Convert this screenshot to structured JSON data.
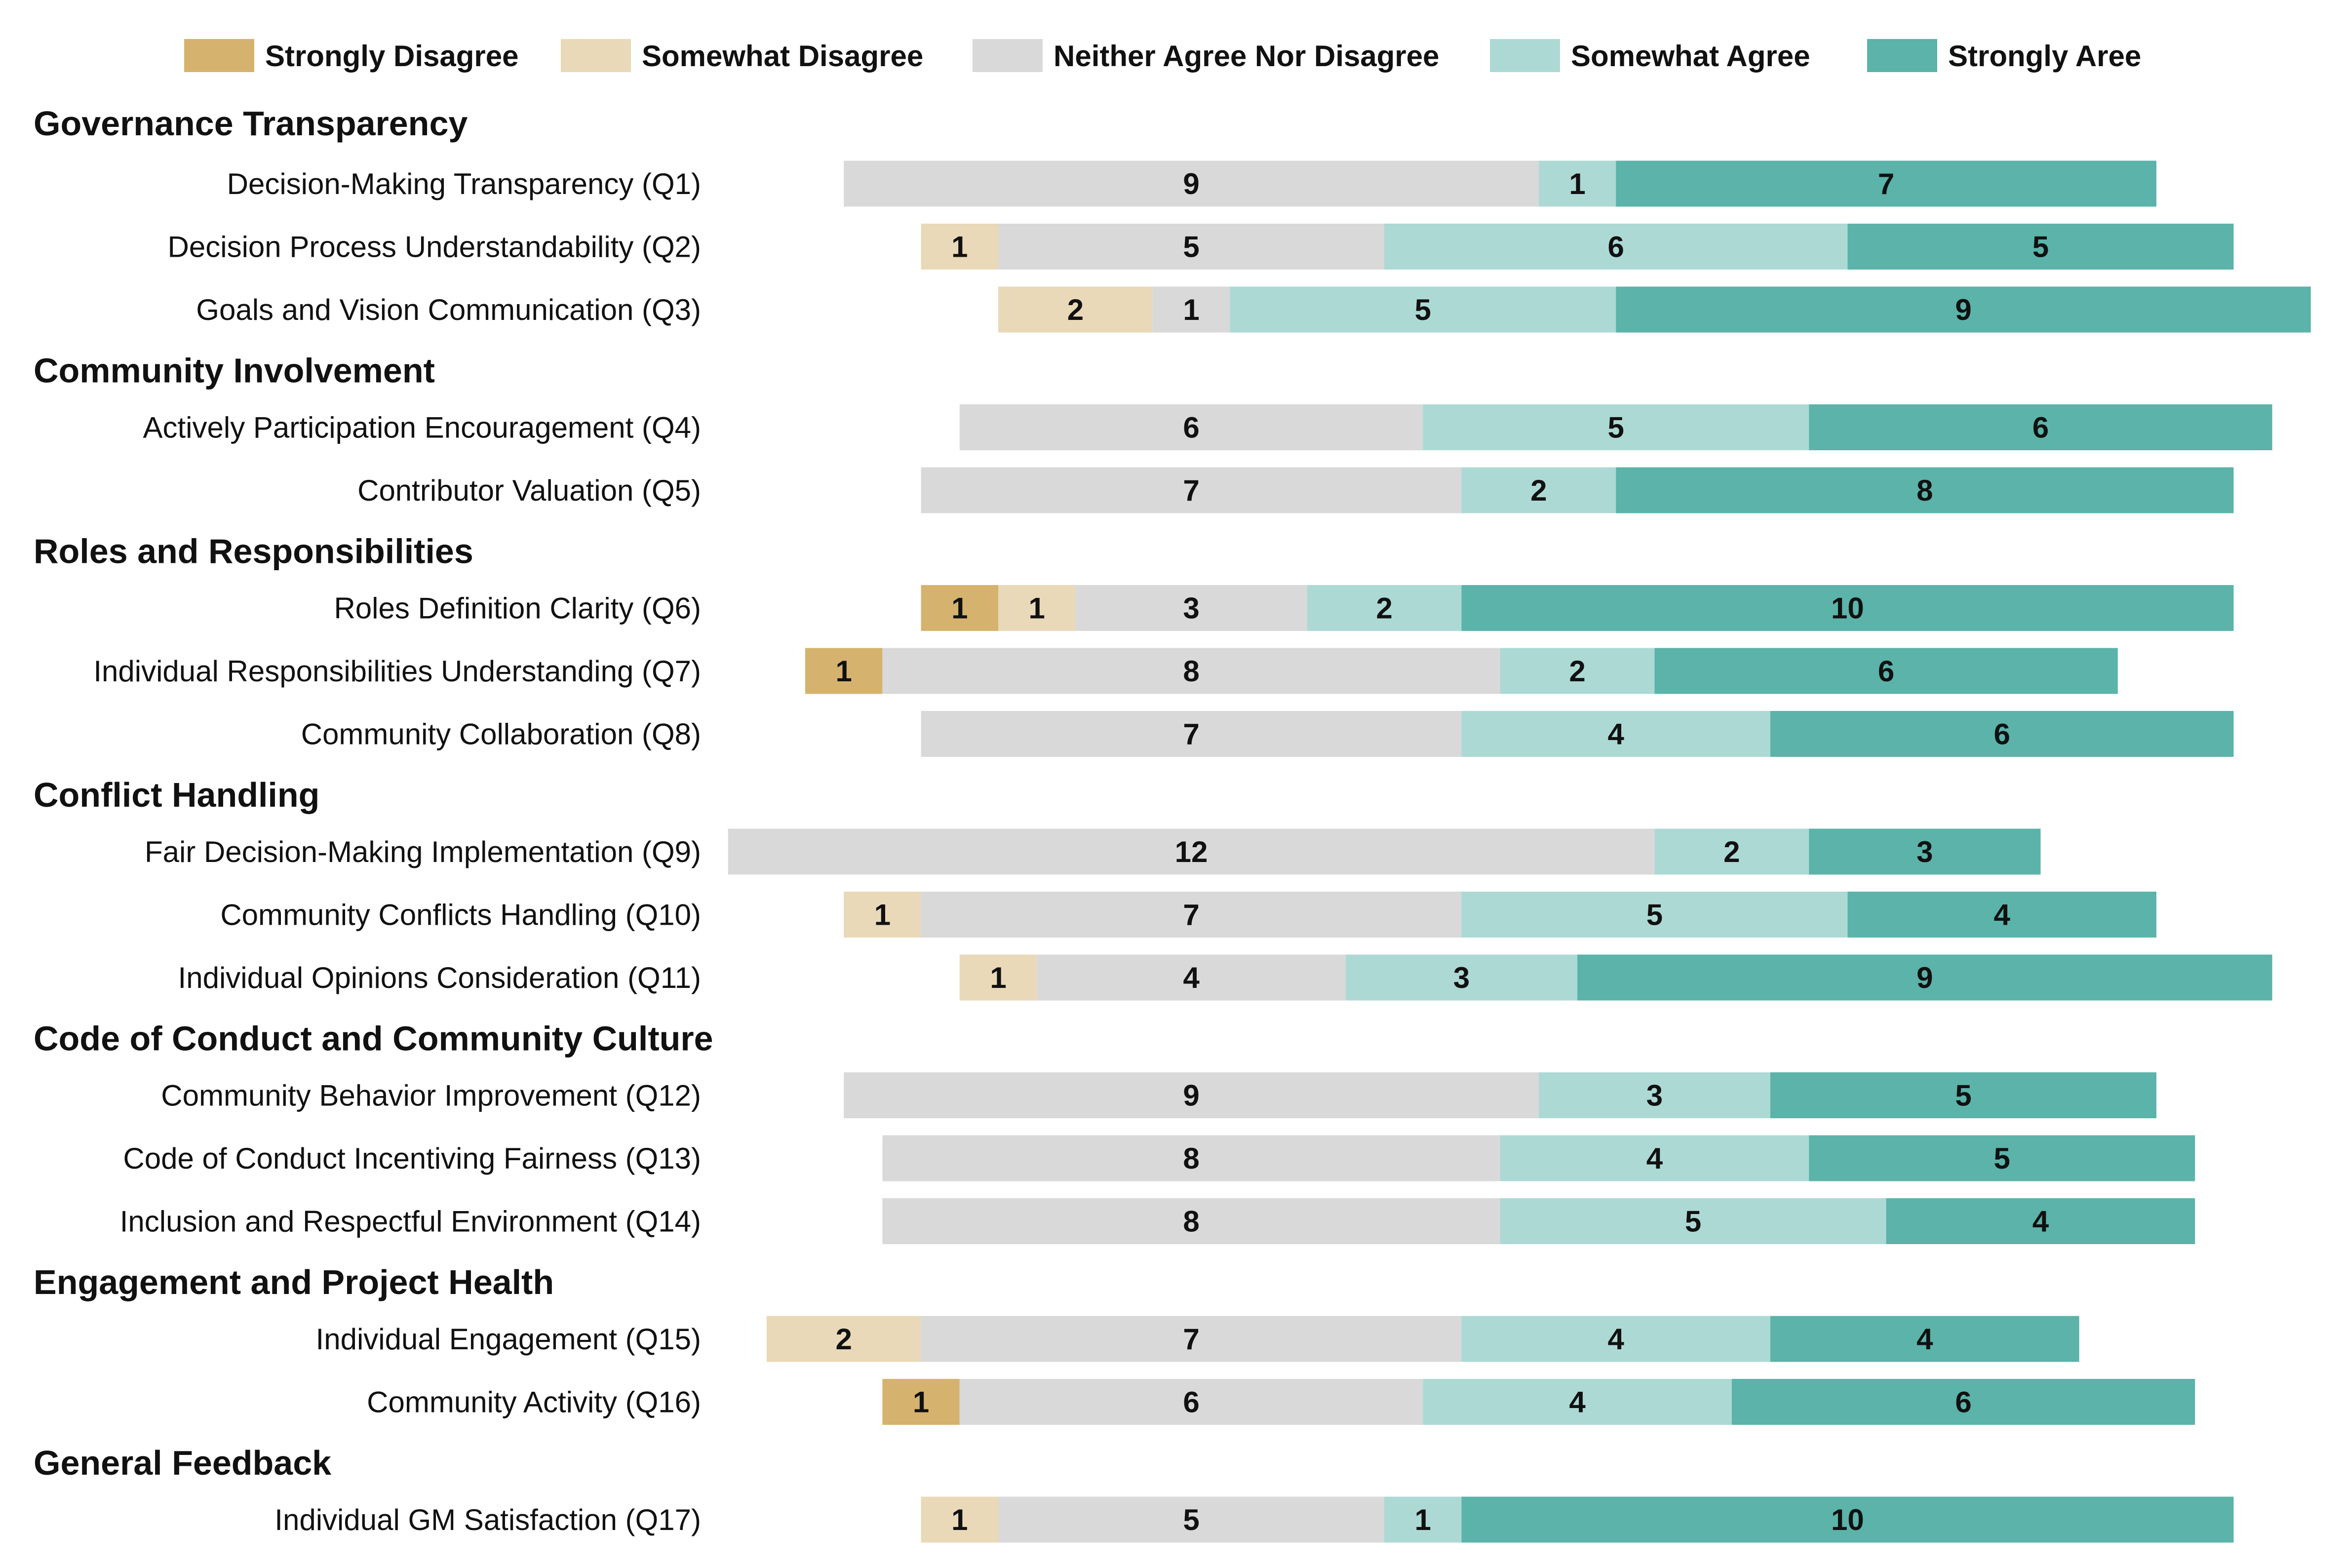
{
  "chart_data": {
    "type": "bar",
    "orientation": "horizontal",
    "stacked": true,
    "diverging": true,
    "title": "",
    "xlabel": "",
    "ylabel": "",
    "grid": false,
    "legend_position": "top",
    "legend": [
      {
        "name": "Strongly Disagree",
        "color": "#D5B36E"
      },
      {
        "name": "Somewhat Disagree",
        "color": "#E9D9B8"
      },
      {
        "name": "Neither Agree Nor Disagree",
        "color": "#D9D9D9"
      },
      {
        "name": "Somewhat Agree",
        "color": "#ADD9D5"
      },
      {
        "name": "Strongly Aree",
        "color": "#5BB3A9"
      }
    ],
    "sections": [
      {
        "title": "Governance Transparency",
        "items": [
          {
            "label": "Decision-Making Transparency (Q1)",
            "values": [
              0,
              0,
              9,
              1,
              7
            ]
          },
          {
            "label": "Decision Process Understandability (Q2)",
            "values": [
              0,
              1,
              5,
              6,
              5
            ]
          },
          {
            "label": "Goals and Vision Communication (Q3)",
            "values": [
              0,
              2,
              1,
              5,
              9
            ]
          }
        ]
      },
      {
        "title": "Community Involvement",
        "items": [
          {
            "label": "Actively Participation Encouragement (Q4)",
            "values": [
              0,
              0,
              6,
              5,
              6
            ]
          },
          {
            "label": "Contributor Valuation (Q5)",
            "values": [
              0,
              0,
              7,
              2,
              8
            ]
          }
        ]
      },
      {
        "title": "Roles and Responsibilities",
        "items": [
          {
            "label": "Roles Definition Clarity (Q6)",
            "values": [
              1,
              1,
              3,
              2,
              10
            ]
          },
          {
            "label": "Individual Responsibilities Understanding (Q7)",
            "values": [
              1,
              0,
              8,
              2,
              6
            ]
          },
          {
            "label": "Community Collaboration (Q8)",
            "values": [
              0,
              0,
              7,
              4,
              6
            ]
          }
        ]
      },
      {
        "title": "Conflict Handling",
        "items": [
          {
            "label": "Fair Decision-Making Implementation (Q9)",
            "values": [
              0,
              0,
              12,
              2,
              3
            ]
          },
          {
            "label": "Community Conflicts Handling (Q10)",
            "values": [
              0,
              1,
              7,
              5,
              4
            ]
          },
          {
            "label": "Individual Opinions Consideration (Q11)",
            "values": [
              0,
              1,
              4,
              3,
              9
            ]
          }
        ]
      },
      {
        "title": "Code of Conduct and Community Culture",
        "items": [
          {
            "label": "Community Behavior Improvement (Q12)",
            "values": [
              0,
              0,
              9,
              3,
              5
            ]
          },
          {
            "label": "Code of Conduct Incentiving Fairness (Q13)",
            "values": [
              0,
              0,
              8,
              4,
              5
            ]
          },
          {
            "label": "Inclusion and Respectful Environment (Q14)",
            "values": [
              0,
              0,
              8,
              5,
              4
            ]
          }
        ]
      },
      {
        "title": "Engagement and Project Health",
        "items": [
          {
            "label": "Individual Engagement (Q15)",
            "values": [
              0,
              2,
              7,
              4,
              4
            ]
          },
          {
            "label": "Community Activity (Q16)",
            "values": [
              1,
              0,
              6,
              4,
              6
            ]
          }
        ]
      },
      {
        "title": "General Feedback",
        "items": [
          {
            "label": "Individual GM Satisfaction (Q17)",
            "values": [
              0,
              1,
              5,
              1,
              10
            ]
          }
        ]
      }
    ]
  }
}
